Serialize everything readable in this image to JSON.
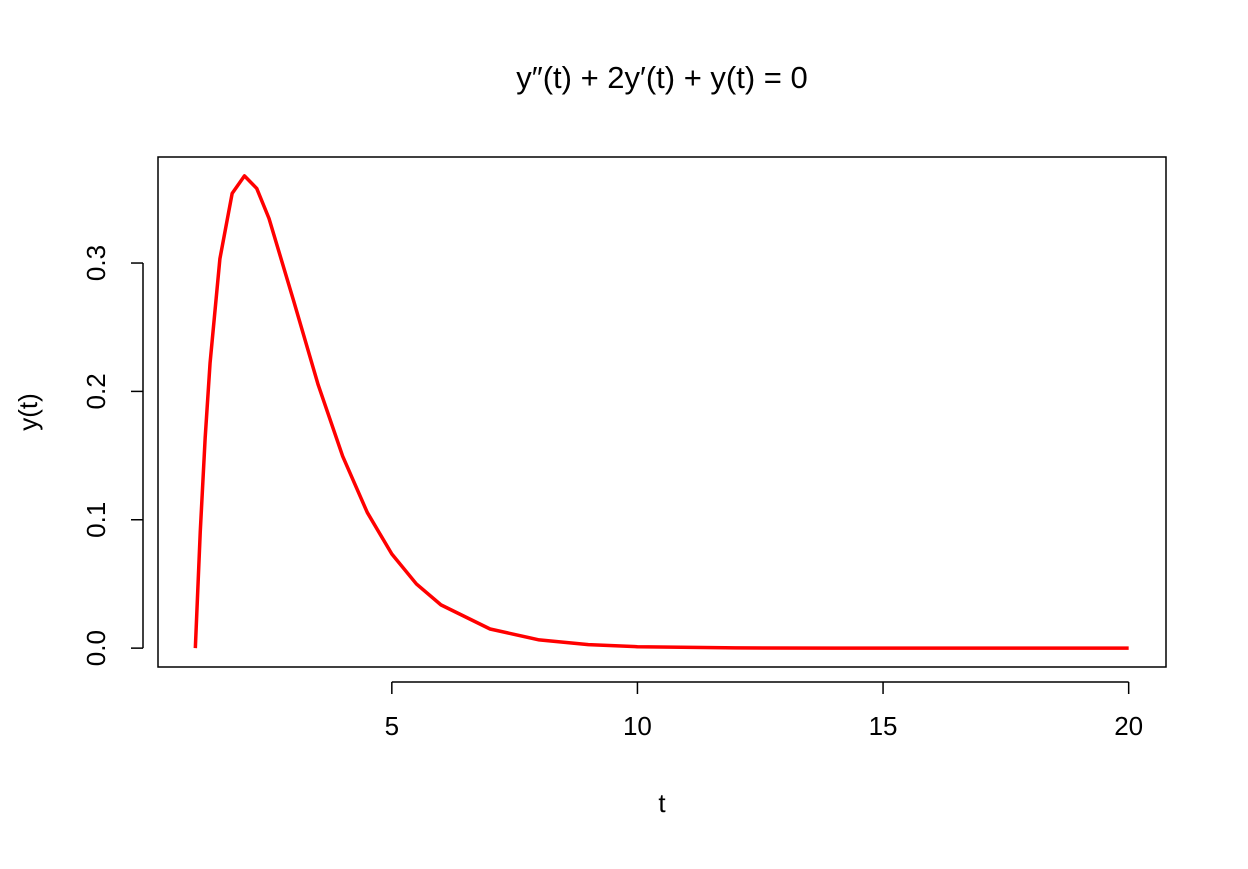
{
  "chart_data": {
    "type": "line",
    "title": "y″(t) + 2y′(t) + y(t) = 0",
    "x_label": "t",
    "y_label": "y(t)",
    "series": [
      {
        "name": "y(t)",
        "color": "#ff0000",
        "x": [
          1,
          1.1,
          1.2,
          1.3,
          1.5,
          1.75,
          2,
          2.25,
          2.5,
          3,
          3.5,
          4,
          4.5,
          5,
          5.5,
          6,
          7,
          8,
          9,
          10,
          12,
          14,
          16,
          18,
          20
        ],
        "values": [
          0,
          0.0905,
          0.1637,
          0.2222,
          0.3033,
          0.3543,
          0.3679,
          0.3581,
          0.3347,
          0.2707,
          0.2052,
          0.1494,
          0.1057,
          0.0733,
          0.05,
          0.0337,
          0.0149,
          0.0064,
          0.0027,
          0.0011,
          0.0002,
          0,
          0,
          0,
          0
        ]
      }
    ],
    "xlim": [
      0.24,
      20.76
    ],
    "ylim": [
      -0.0147,
      0.3826
    ],
    "xticks": [
      5,
      10,
      15,
      20
    ],
    "yticks": [
      {
        "value": 0,
        "label": "0.0"
      },
      {
        "value": 0.1,
        "label": "0.1"
      },
      {
        "value": 0.2,
        "label": "0.2"
      },
      {
        "value": 0.3,
        "label": "0.3"
      }
    ],
    "grid": false
  }
}
